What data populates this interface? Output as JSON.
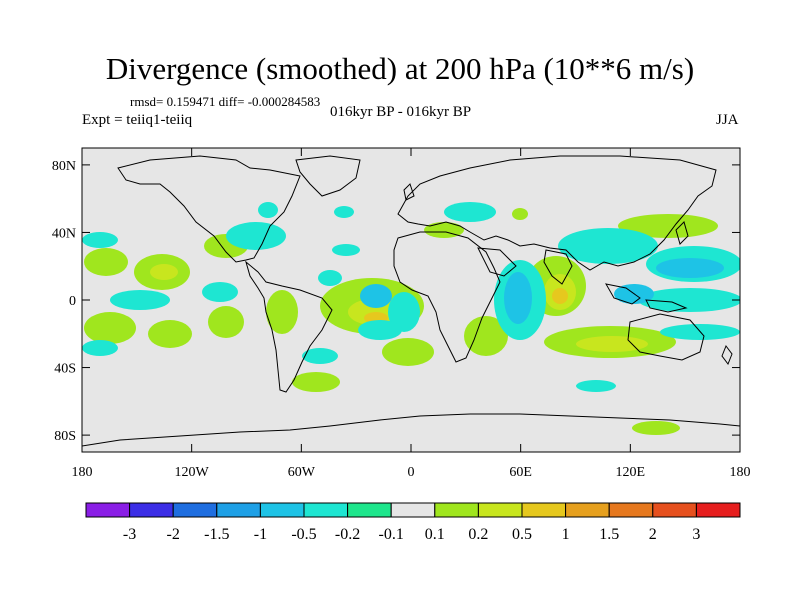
{
  "title": "Divergence (smoothed) at 200 hPa (10**6 m/s)",
  "stats_text": "rmsd= 0.159471 diff= -0.000284583",
  "period": "016kyr BP - 016kyr BP",
  "expt": "Expt = teiiq1-teiiq",
  "season": "JJA",
  "lat_labels": [
    "80N",
    "40N",
    "0",
    "40S",
    "80S"
  ],
  "lat_values": [
    80,
    40,
    0,
    -40,
    -80
  ],
  "lon_labels": [
    "180",
    "120W",
    "60W",
    "0",
    "60E",
    "120E",
    "180"
  ],
  "lon_values": [
    -180,
    -120,
    -60,
    0,
    60,
    120,
    180
  ],
  "colorbar": {
    "colors": [
      "#8a1ee6",
      "#3c2ee6",
      "#1f6ee0",
      "#1ea0e6",
      "#1ec3e6",
      "#1ee6d2",
      "#1ee68c",
      "#e6e6e6",
      "#a0e61e",
      "#c8e61e",
      "#e6c81e",
      "#e6a01e",
      "#e6781e",
      "#e6501e",
      "#e61e1e"
    ],
    "labels": [
      "-3",
      "-2",
      "-1.5",
      "-1",
      "-0.5",
      "-0.2",
      "-0.1",
      "0.1",
      "0.2",
      "0.5",
      "1",
      "1.5",
      "2",
      "3"
    ]
  }
}
